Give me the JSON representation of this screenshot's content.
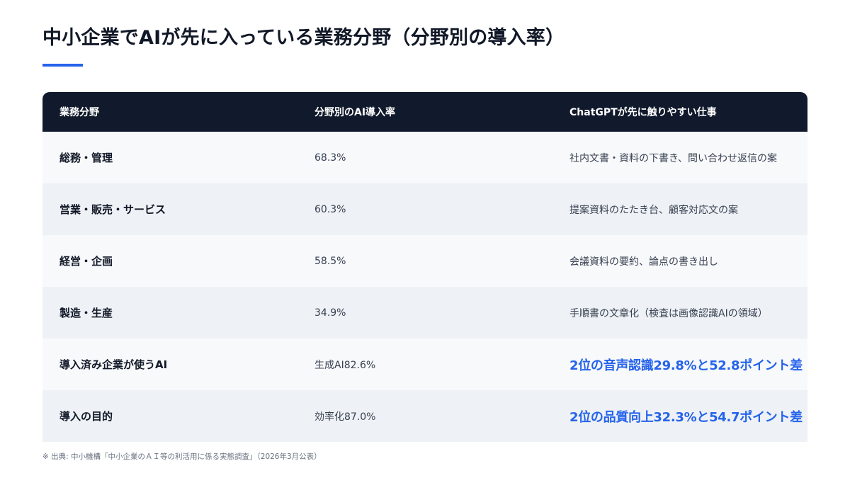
{
  "title": "中小企業でAIが先に入っている業務分野（分野別の導入率）",
  "table": {
    "headers": [
      "業務分野",
      "分野別のAI導入率",
      "ChatGPTが先に触りやすい仕事"
    ],
    "rows": [
      {
        "field": "総務・管理",
        "rate": "68.3%",
        "task": "社内文書・資料の下書き、問い合わせ返信の案"
      },
      {
        "field": "営業・販売・サービス",
        "rate": "60.3%",
        "task": "提案資料のたたき台、顧客対応文の案"
      },
      {
        "field": "経営・企画",
        "rate": "58.5%",
        "task": "会議資料の要約、論点の書き出し"
      },
      {
        "field": "製造・生産",
        "rate": "34.9%",
        "task": "手順書の文章化（検査は画像認識AIの領域）"
      },
      {
        "field": "導入済み企業が使うAI",
        "rate": "生成AI82.6%",
        "task": "2位の音声認識29.8%と52.8ポイント差"
      },
      {
        "field": "導入の目的",
        "rate": "効率化87.0%",
        "task": "2位の品質向上32.3%と54.7ポイント差"
      }
    ]
  },
  "source": "※ 出典: 中小機構「中小企業のＡＩ等の利活用に係る実態調査」（2026年3月公表）",
  "colors": {
    "accent": "#2563eb",
    "header_bg": "#111a2c"
  }
}
